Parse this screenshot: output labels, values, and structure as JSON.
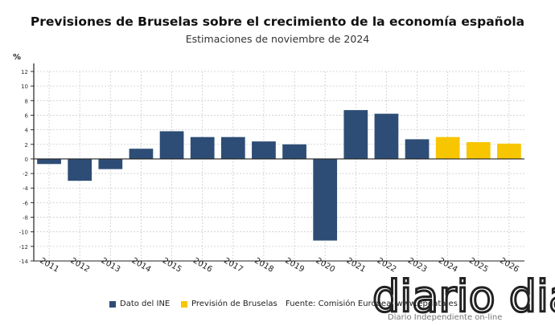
{
  "chart_data": {
    "type": "bar",
    "title": "Previsiones de Bruselas sobre el crecimiento de la economía española",
    "subtitle": "Estimaciones de noviembre de 2024",
    "ylabel": "%",
    "xlabel": "",
    "ylim": [
      -14,
      12
    ],
    "yticks": [
      -14,
      -12,
      -10,
      -8,
      -6,
      -4,
      -2,
      0,
      2,
      4,
      6,
      8,
      10,
      12
    ],
    "grid": true,
    "legend_position": "bottom",
    "categories": [
      "2011",
      "2012",
      "2013",
      "2014",
      "2015",
      "2016",
      "2017",
      "2018",
      "2019",
      "2020",
      "2021",
      "2022",
      "2023",
      "2024",
      "2025",
      "2026"
    ],
    "values": [
      -0.7,
      -3.0,
      -1.4,
      1.4,
      3.8,
      3.0,
      3.0,
      2.4,
      2.0,
      -11.2,
      6.7,
      6.2,
      2.7,
      3.0,
      2.3,
      2.1
    ],
    "series": [
      {
        "name": "Dato del INE",
        "color": "#2e4d76",
        "categories": [
          "2011",
          "2012",
          "2013",
          "2014",
          "2015",
          "2016",
          "2017",
          "2018",
          "2019",
          "2020",
          "2021",
          "2022",
          "2023"
        ]
      },
      {
        "name": "Previsión de Bruselas",
        "color": "#f7c600",
        "categories": [
          "2024",
          "2025",
          "2026"
        ]
      }
    ],
    "source": "Fuente: Comisión Europea, www.epdata.es"
  },
  "watermark": {
    "logo": "diario dia",
    "tagline": "Diario Independiente on-line"
  }
}
